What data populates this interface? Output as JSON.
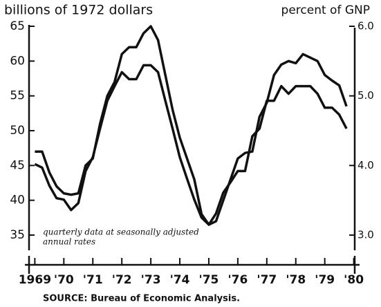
{
  "chart_data": {
    "type": "line",
    "title": "billions of 1972 dollars",
    "y2_label": "percent of GNP",
    "annotations": [
      "quarterly data at seasonally adjusted",
      "annual rates"
    ],
    "source": "SOURCE: Bureau of Economic Analysis.",
    "x": [
      1969,
      1969.25,
      1969.5,
      1969.75,
      1970,
      1970.25,
      1970.5,
      1970.75,
      1971,
      1971.25,
      1971.5,
      1971.75,
      1972,
      1972.25,
      1972.5,
      1972.75,
      1973,
      1973.25,
      1973.5,
      1973.75,
      1974,
      1974.25,
      1974.5,
      1974.75,
      1975,
      1975.25,
      1975.5,
      1975.75,
      1976,
      1976.25,
      1976.5,
      1976.75,
      1977,
      1977.25,
      1977.5,
      1977.75,
      1978,
      1978.25,
      1978.5,
      1978.75,
      1979,
      1979.25,
      1979.5,
      1979.75
    ],
    "series": [
      {
        "color": "#111111",
        "values": [
          47,
          47,
          44,
          42,
          41,
          40.8,
          41,
          45,
          46,
          51,
          55,
          57,
          61,
          62,
          62,
          64,
          65,
          63,
          58,
          53,
          49,
          46,
          43,
          38,
          36.5,
          37,
          40,
          43,
          46,
          46.8,
          47,
          52,
          54,
          58,
          59.5,
          60,
          59.7,
          61,
          60.5,
          60,
          58,
          57.2,
          56.5,
          53.5
        ]
      },
      {
        "color": "#111111",
        "axis": "y2",
        "values": [
          4.02,
          3.97,
          3.71,
          3.53,
          3.51,
          3.36,
          3.46,
          3.92,
          4.12,
          4.53,
          4.93,
          5.14,
          5.34,
          5.24,
          5.24,
          5.44,
          5.44,
          5.34,
          4.93,
          4.53,
          4.12,
          3.81,
          3.51,
          3.25,
          3.15,
          3.31,
          3.61,
          3.76,
          3.92,
          3.92,
          4.42,
          4.53,
          4.93,
          4.93,
          5.14,
          5.03,
          5.14,
          5.14,
          5.14,
          5.03,
          4.83,
          4.83,
          4.73,
          4.53
        ]
      }
    ],
    "xlim": [
      1968.8,
      1980.2
    ],
    "xticks": [
      {
        "value": 1969,
        "label": "1969"
      },
      {
        "value": 1970,
        "label": "'70"
      },
      {
        "value": 1971,
        "label": "'71"
      },
      {
        "value": 1972,
        "label": "'72"
      },
      {
        "value": 1973,
        "label": "'73"
      },
      {
        "value": 1974,
        "label": "'74"
      },
      {
        "value": 1975,
        "label": "'75"
      },
      {
        "value": 1976,
        "label": "'76"
      },
      {
        "value": 1977,
        "label": "'77"
      },
      {
        "value": 1978,
        "label": "'78"
      },
      {
        "value": 1979,
        "label": "'79"
      },
      {
        "value": 1980,
        "label": "'80"
      }
    ],
    "ylim": [
      35,
      65
    ],
    "yticks": [
      35,
      40,
      45,
      50,
      55,
      60,
      65
    ],
    "y2lim": [
      3,
      6
    ],
    "y2ticks": [
      {
        "value": 3,
        "label": "3.0"
      },
      {
        "value": 4,
        "label": "4.0"
      },
      {
        "value": 5,
        "label": "5.0"
      },
      {
        "value": 6,
        "label": "6.0"
      }
    ],
    "grid": false
  }
}
